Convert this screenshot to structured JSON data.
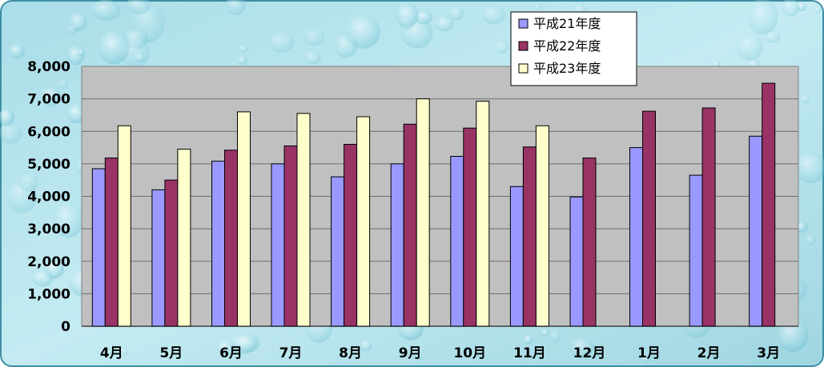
{
  "chart_data": {
    "type": "bar",
    "categories": [
      "4月",
      "5月",
      "6月",
      "7月",
      "8月",
      "9月",
      "10月",
      "11月",
      "12月",
      "1月",
      "2月",
      "3月"
    ],
    "series": [
      {
        "name": "平成21年度",
        "color": "#9999ff",
        "values": [
          4850,
          4200,
          5080,
          5000,
          4600,
          5000,
          5230,
          4300,
          3980,
          5500,
          4650,
          5850
        ]
      },
      {
        "name": "平成22年度",
        "color": "#993366",
        "values": [
          5180,
          4500,
          5420,
          5550,
          5600,
          6220,
          6100,
          5520,
          5180,
          6620,
          6720,
          7480
        ]
      },
      {
        "name": "平成23年度",
        "color": "#ffffcc",
        "values": [
          6170,
          5450,
          6600,
          6550,
          6450,
          7000,
          6930,
          6170,
          null,
          null,
          null,
          null
        ]
      }
    ],
    "yticks": [
      "0",
      "1,000",
      "2,000",
      "3,000",
      "4,000",
      "5,000",
      "6,000",
      "7,000",
      "8,000"
    ],
    "ylim": [
      0,
      8000
    ],
    "grid": true,
    "legend_position": "top-right",
    "plot_background": "#c0c0c0",
    "background": "water-droplet texture (light aqua)"
  }
}
